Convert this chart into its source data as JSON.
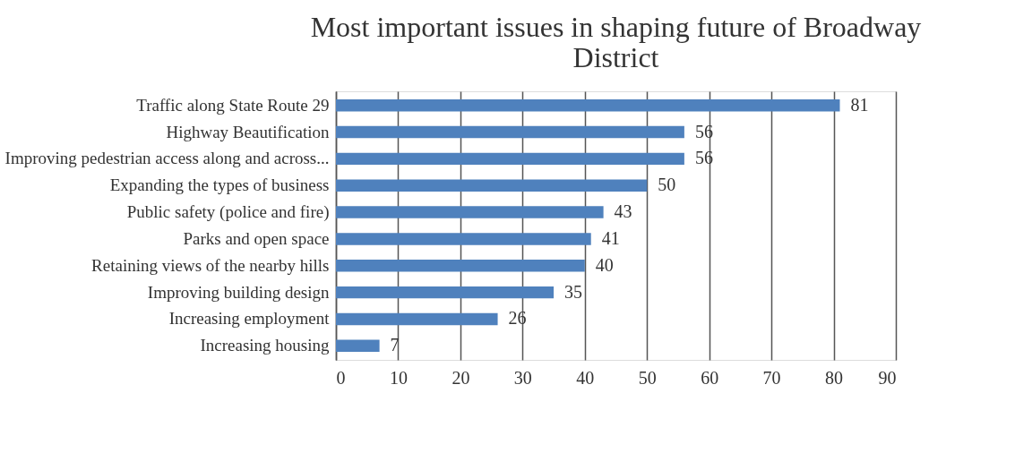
{
  "chart_data": {
    "type": "bar",
    "orientation": "horizontal",
    "title": "Most important issues in shaping future of Broadway District",
    "categories": [
      "Traffic along State Route 29",
      "Highway Beautification",
      "Improving pedestrian access along and across...",
      "Expanding the types of business",
      "Public safety (police and fire)",
      "Parks and open space",
      "Retaining views of the nearby hills",
      "Improving building design",
      "Increasing employment",
      "Increasing housing"
    ],
    "values": [
      81,
      56,
      56,
      50,
      43,
      41,
      40,
      35,
      26,
      7
    ],
    "color": "#4f81bd",
    "xlim": [
      0,
      90
    ],
    "xticks": [
      0,
      10,
      20,
      30,
      40,
      50,
      60,
      70,
      80,
      90
    ],
    "grid": "x",
    "data_labels": true
  }
}
